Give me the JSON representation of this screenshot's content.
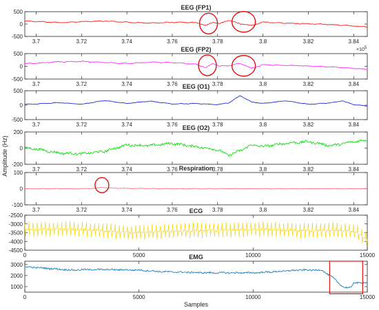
{
  "chart_data": [
    {
      "type": "line",
      "title": "EEG (FP1)",
      "color": "#ff2020",
      "x_ticks": [
        "3.7",
        "3.72",
        "3.74",
        "3.76",
        "3.78",
        "3.8",
        "3.82",
        "3.84"
      ],
      "xlim": [
        3.695,
        3.846
      ],
      "y_ticks": [
        "500",
        "0",
        "-500"
      ],
      "ylim": [
        -500,
        500
      ],
      "exponent": "",
      "series": {
        "x": [
          3.695,
          3.7,
          3.71,
          3.72,
          3.73,
          3.74,
          3.75,
          3.76,
          3.77,
          3.775,
          3.778,
          3.781,
          3.785,
          3.79,
          3.795,
          3.8,
          3.81,
          3.82,
          3.83,
          3.84,
          3.846
        ],
        "values": [
          110,
          105,
          60,
          95,
          120,
          75,
          40,
          70,
          60,
          -50,
          70,
          20,
          150,
          10,
          -60,
          80,
          40,
          10,
          -20,
          -80,
          -110
        ]
      },
      "markers": [
        {
          "kind": "ellipse",
          "x": 3.776,
          "y": 20
        },
        {
          "kind": "ellipse",
          "x": 3.7915,
          "y": 90
        }
      ]
    },
    {
      "type": "line",
      "title": "EEG (FP2)",
      "color": "#ff30ff",
      "x_ticks": [
        "3.7",
        "3.72",
        "3.74",
        "3.76",
        "3.78",
        "3.8",
        "3.82",
        "3.84"
      ],
      "xlim": [
        3.695,
        3.846
      ],
      "y_ticks": [
        "500",
        "0",
        "-500"
      ],
      "ylim": [
        -500,
        500
      ],
      "exponent": "×10",
      "exponent_power": "5",
      "series": {
        "x": [
          3.695,
          3.7,
          3.71,
          3.72,
          3.73,
          3.74,
          3.75,
          3.76,
          3.77,
          3.775,
          3.778,
          3.781,
          3.785,
          3.79,
          3.795,
          3.8,
          3.81,
          3.82,
          3.83,
          3.84,
          3.846
        ],
        "values": [
          110,
          120,
          180,
          190,
          150,
          110,
          160,
          150,
          90,
          -50,
          120,
          10,
          30,
          120,
          -80,
          60,
          40,
          10,
          -20,
          -80,
          -120
        ]
      },
      "markers": [
        {
          "kind": "ellipse",
          "x": 3.7755,
          "y": 40
        },
        {
          "kind": "ellipse",
          "x": 3.7915,
          "y": 20
        }
      ]
    },
    {
      "type": "line",
      "title": "EEG (O1)",
      "color": "#1f2fd8",
      "x_ticks": [
        "3.7",
        "3.72",
        "3.74",
        "3.76",
        "3.78",
        "3.8",
        "3.82",
        "3.84"
      ],
      "xlim": [
        3.695,
        3.846
      ],
      "y_ticks": [
        "500",
        "0",
        "-500"
      ],
      "ylim": [
        -500,
        500
      ],
      "exponent": "",
      "series": {
        "x": [
          3.695,
          3.7,
          3.71,
          3.72,
          3.73,
          3.74,
          3.75,
          3.76,
          3.77,
          3.78,
          3.785,
          3.79,
          3.795,
          3.8,
          3.81,
          3.82,
          3.83,
          3.835,
          3.84,
          3.846
        ],
        "values": [
          30,
          40,
          90,
          30,
          160,
          60,
          140,
          40,
          60,
          20,
          80,
          330,
          110,
          60,
          150,
          30,
          80,
          150,
          20,
          -30
        ]
      },
      "markers": []
    },
    {
      "type": "line",
      "title": "EEG (O2)",
      "color": "#10e010",
      "x_ticks": [
        "3.7",
        "3.72",
        "3.74",
        "3.76",
        "3.78",
        "3.8",
        "3.82",
        "3.84"
      ],
      "xlim": [
        3.695,
        3.846
      ],
      "y_ticks": [
        "200",
        "0",
        "-200"
      ],
      "ylim": [
        -200,
        200
      ],
      "exponent": "",
      "series": {
        "x": [
          3.695,
          3.7,
          3.71,
          3.72,
          3.73,
          3.74,
          3.75,
          3.76,
          3.77,
          3.78,
          3.785,
          3.79,
          3.795,
          3.8,
          3.81,
          3.82,
          3.83,
          3.84,
          3.846
        ],
        "values": [
          0,
          -10,
          -60,
          -70,
          -40,
          40,
          30,
          60,
          20,
          -20,
          -90,
          -30,
          40,
          20,
          60,
          80,
          30,
          80,
          100
        ]
      },
      "markers": []
    },
    {
      "type": "line",
      "title": "Respiration",
      "color": "#ff7080",
      "x_ticks": [
        "3.7",
        "3.72",
        "3.74",
        "3.76",
        "3.78",
        "3.8",
        "3.82",
        "3.84"
      ],
      "xlim": [
        3.695,
        3.846
      ],
      "y_ticks": [
        "100",
        "0",
        "-100"
      ],
      "ylim": [
        -100,
        100
      ],
      "exponent": "",
      "series": {
        "x": [
          3.695,
          3.7,
          3.71,
          3.72,
          3.726,
          3.729,
          3.732,
          3.74,
          3.76,
          3.78,
          3.8,
          3.82,
          3.84,
          3.846
        ],
        "values": [
          0,
          0,
          0,
          0,
          2,
          8,
          4,
          2,
          0,
          0,
          0,
          0,
          0,
          0
        ]
      },
      "markers": [
        {
          "kind": "ellipse",
          "x": 3.729,
          "y": 22
        }
      ]
    },
    {
      "type": "line",
      "title": "ECG",
      "color": "#f5d31a",
      "x_ticks": [
        "0",
        "5000",
        "10000",
        "15000"
      ],
      "xlim": [
        0,
        15000
      ],
      "y_ticks": [
        "-2500",
        "-3000",
        "-3500",
        "-4000",
        "-4500"
      ],
      "ylim": [
        -4500,
        -2500
      ],
      "exponent": "",
      "series": {
        "x": [
          0,
          1500,
          3000,
          4500,
          6000,
          7500,
          9000,
          10500,
          12000,
          13500,
          14500,
          15000
        ],
        "values": [
          -3350,
          -3300,
          -3350,
          -3500,
          -3450,
          -3400,
          -3350,
          -3300,
          -3400,
          -3350,
          -3450,
          -3900
        ]
      },
      "markers": []
    },
    {
      "type": "line",
      "title": "EMG",
      "color": "#1a7fc0",
      "x_ticks": [
        "0",
        "5000",
        "10000",
        "15000"
      ],
      "xlim": [
        0,
        15000
      ],
      "y_ticks": [
        "3000",
        "2000",
        "1000"
      ],
      "ylim": [
        500,
        3300
      ],
      "exponent": "",
      "xlabel": "Samples",
      "series": {
        "x": [
          0,
          1000,
          2000,
          3000,
          5000,
          6000,
          7000,
          8000,
          9000,
          10000,
          11000,
          12000,
          13000,
          13500,
          13700,
          14000,
          14300,
          14400,
          14700,
          15000
        ],
        "values": [
          2800,
          2650,
          2500,
          2550,
          2500,
          2350,
          2300,
          2250,
          2250,
          2250,
          2350,
          2500,
          2500,
          1800,
          1400,
          900,
          900,
          1400,
          1300,
          1400
        ]
      },
      "markers": [
        {
          "kind": "rect",
          "x0": 13350,
          "x1": 14800,
          "y0": 350,
          "y1": 3300
        }
      ]
    }
  ],
  "ylabel": "Amplitude (Hz)"
}
